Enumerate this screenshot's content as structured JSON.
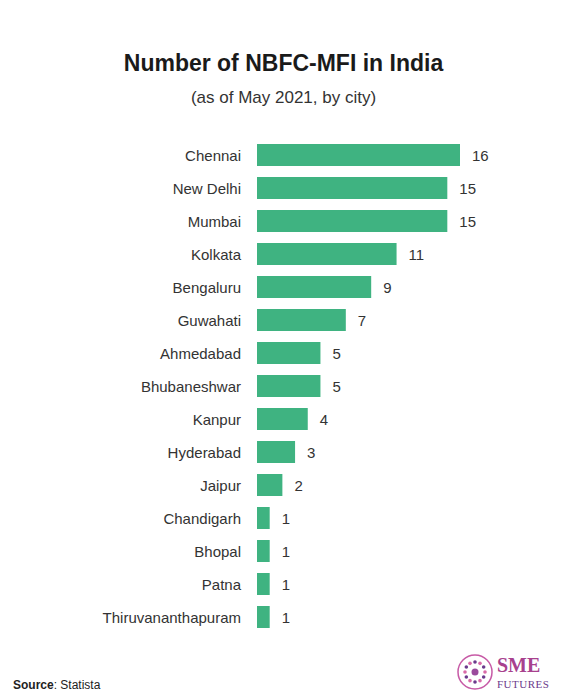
{
  "chart_data": {
    "type": "bar",
    "orientation": "horizontal",
    "title": "Number of NBFC-MFI in India",
    "subtitle": "(as of May 2021, by city)",
    "categories": [
      "Chennai",
      "New Delhi",
      "Mumbai",
      "Kolkata",
      "Bengaluru",
      "Guwahati",
      "Ahmedabad",
      "Bhubaneshwar",
      "Kanpur",
      "Hyderabad",
      "Jaipur",
      "Chandigarh",
      "Bhopal",
      "Patna",
      "Thiruvananthapuram"
    ],
    "values": [
      16,
      15,
      15,
      11,
      9,
      7,
      5,
      5,
      4,
      3,
      2,
      1,
      1,
      1,
      1
    ],
    "color": "#3fb381",
    "xlim": [
      0,
      16
    ],
    "data_labels": true,
    "tick_labels": "y",
    "grid": false,
    "source": "Source: Statista",
    "annotations": [
      "SME FUTURES"
    ]
  }
}
